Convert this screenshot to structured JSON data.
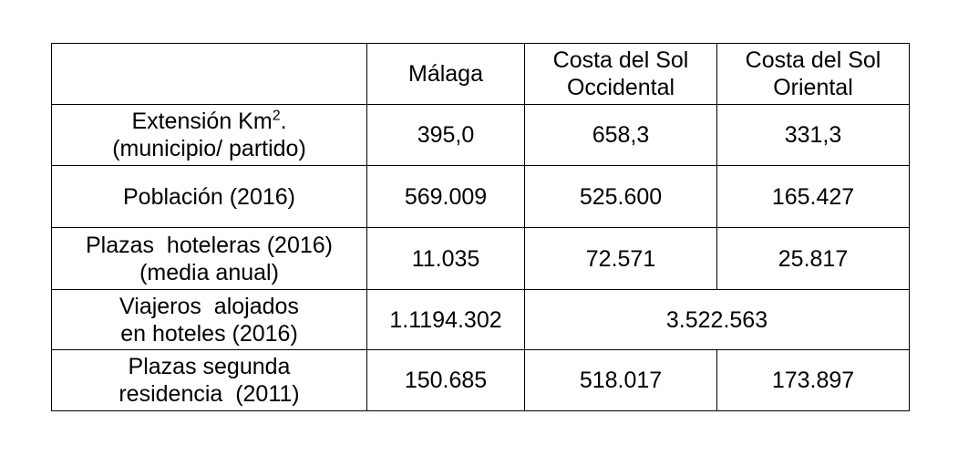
{
  "table": {
    "header": {
      "blank": "",
      "malaga": "Málaga",
      "occidental": [
        "Costa del Sol",
        "Occidental"
      ],
      "oriental": [
        "Costa del Sol",
        "Oriental"
      ]
    },
    "rows": {
      "extension": {
        "label_lines": [
          "Extensión Km",
          "(municipio/ partido)"
        ],
        "label_sup": "2",
        "label_after_sup": ".",
        "malaga": "395,0",
        "occidental": "658,3",
        "oriental": "331,3"
      },
      "poblacion": {
        "label": "Población (2016)",
        "malaga": "569.009",
        "occidental": "525.600",
        "oriental": "165.427"
      },
      "plazas_hoteleras": {
        "label_lines": [
          "Plazas  hoteleras (2016)",
          "(media anual)"
        ],
        "malaga": "11.035",
        "occidental": "72.571",
        "oriental": "25.817"
      },
      "viajeros": {
        "label_lines": [
          "Viajeros  alojados",
          "en hoteles (2016)"
        ],
        "malaga": "1.1194.302",
        "costa_combined": "3.522.563"
      },
      "segunda_residencia": {
        "label_lines": [
          "Plazas segunda",
          "residencia  (2011)"
        ],
        "malaga": "150.685",
        "occidental": "518.017",
        "oriental": "173.897"
      }
    }
  }
}
